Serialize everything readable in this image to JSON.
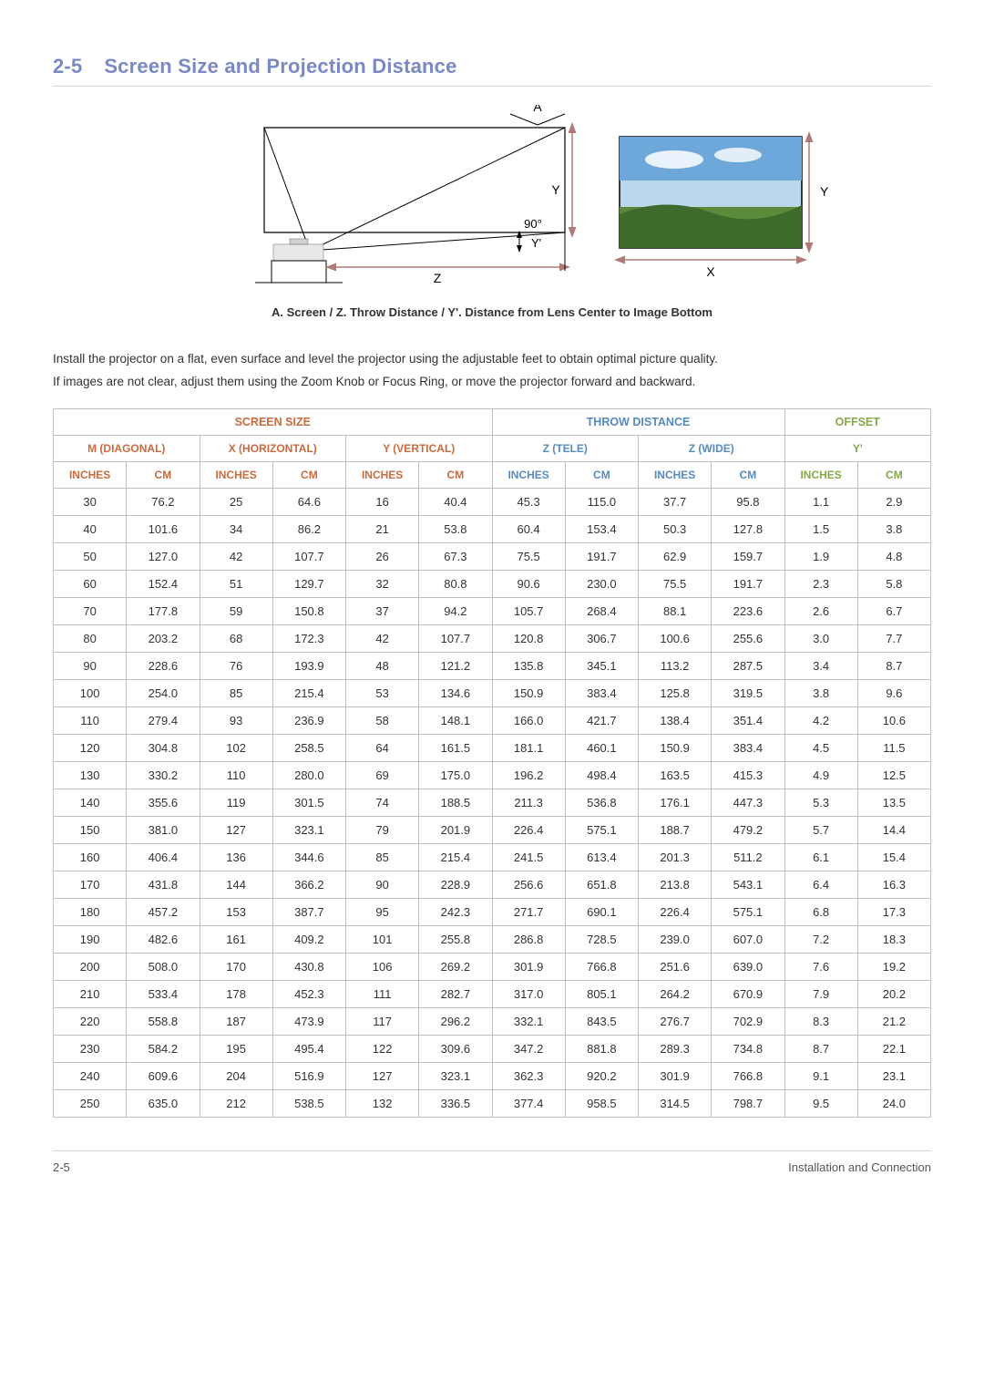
{
  "title": {
    "num": "2-5",
    "text": "Screen Size and Projection Distance"
  },
  "diagram": {
    "caption": "A. Screen / Z. Throw Distance / Y'. Distance from Lens Center to Image Bottom",
    "labels": {
      "A": "A",
      "Y": "Y",
      "Yp": "Y'",
      "Z": "Z",
      "X": "X",
      "angle": "90°"
    },
    "colors": {
      "line": "#000000",
      "guide": "#b07a76",
      "arrow_bar": "#b07a76",
      "projector_body": "#e8e8e8",
      "projector_shadow": "#d0d0d0",
      "sky_top": "#6ea7d9",
      "sky_bottom": "#bad7ec",
      "field": "#5a8a3a",
      "field_dark": "#3e6a2b",
      "image_border": "#000000"
    }
  },
  "paragraphs": [
    "Install the projector on a flat, even surface and level the projector using the adjustable feet to obtain optimal picture quality.",
    "If images are not clear, adjust them using the Zoom Knob or Focus Ring, or move the projector forward and backward."
  ],
  "table": {
    "groups": [
      {
        "label": "SCREEN SIZE",
        "span": 6,
        "class": "grp1"
      },
      {
        "label": "THROW DISTANCE",
        "span": 4,
        "class": "grp2"
      },
      {
        "label": "OFFSET",
        "span": 2,
        "class": "grp3"
      }
    ],
    "subgroups": [
      {
        "label": "M (DIAGONAL)",
        "span": 2,
        "class": "grp1"
      },
      {
        "label": "X (HORIZONTAL)",
        "span": 2,
        "class": "grp1"
      },
      {
        "label": "Y (VERTICAL)",
        "span": 2,
        "class": "grp1"
      },
      {
        "label": "Z (TELE)",
        "span": 2,
        "class": "grp2"
      },
      {
        "label": "Z (WIDE)",
        "span": 2,
        "class": "grp2"
      },
      {
        "label": "Y'",
        "span": 2,
        "class": "grp3"
      }
    ],
    "unit_colors": [
      "grp1",
      "grp1",
      "grp1",
      "grp1",
      "grp1",
      "grp1",
      "grp2",
      "grp2",
      "grp2",
      "grp2",
      "grp3",
      "grp3"
    ],
    "units": [
      "INCHES",
      "CM",
      "INCHES",
      "CM",
      "INCHES",
      "CM",
      "INCHES",
      "CM",
      "INCHES",
      "CM",
      "INCHES",
      "CM"
    ],
    "rows": [
      [
        "30",
        "76.2",
        "25",
        "64.6",
        "16",
        "40.4",
        "45.3",
        "115.0",
        "37.7",
        "95.8",
        "1.1",
        "2.9"
      ],
      [
        "40",
        "101.6",
        "34",
        "86.2",
        "21",
        "53.8",
        "60.4",
        "153.4",
        "50.3",
        "127.8",
        "1.5",
        "3.8"
      ],
      [
        "50",
        "127.0",
        "42",
        "107.7",
        "26",
        "67.3",
        "75.5",
        "191.7",
        "62.9",
        "159.7",
        "1.9",
        "4.8"
      ],
      [
        "60",
        "152.4",
        "51",
        "129.7",
        "32",
        "80.8",
        "90.6",
        "230.0",
        "75.5",
        "191.7",
        "2.3",
        "5.8"
      ],
      [
        "70",
        "177.8",
        "59",
        "150.8",
        "37",
        "94.2",
        "105.7",
        "268.4",
        "88.1",
        "223.6",
        "2.6",
        "6.7"
      ],
      [
        "80",
        "203.2",
        "68",
        "172.3",
        "42",
        "107.7",
        "120.8",
        "306.7",
        "100.6",
        "255.6",
        "3.0",
        "7.7"
      ],
      [
        "90",
        "228.6",
        "76",
        "193.9",
        "48",
        "121.2",
        "135.8",
        "345.1",
        "113.2",
        "287.5",
        "3.4",
        "8.7"
      ],
      [
        "100",
        "254.0",
        "85",
        "215.4",
        "53",
        "134.6",
        "150.9",
        "383.4",
        "125.8",
        "319.5",
        "3.8",
        "9.6"
      ],
      [
        "110",
        "279.4",
        "93",
        "236.9",
        "58",
        "148.1",
        "166.0",
        "421.7",
        "138.4",
        "351.4",
        "4.2",
        "10.6"
      ],
      [
        "120",
        "304.8",
        "102",
        "258.5",
        "64",
        "161.5",
        "181.1",
        "460.1",
        "150.9",
        "383.4",
        "4.5",
        "11.5"
      ],
      [
        "130",
        "330.2",
        "110",
        "280.0",
        "69",
        "175.0",
        "196.2",
        "498.4",
        "163.5",
        "415.3",
        "4.9",
        "12.5"
      ],
      [
        "140",
        "355.6",
        "119",
        "301.5",
        "74",
        "188.5",
        "211.3",
        "536.8",
        "176.1",
        "447.3",
        "5.3",
        "13.5"
      ],
      [
        "150",
        "381.0",
        "127",
        "323.1",
        "79",
        "201.9",
        "226.4",
        "575.1",
        "188.7",
        "479.2",
        "5.7",
        "14.4"
      ],
      [
        "160",
        "406.4",
        "136",
        "344.6",
        "85",
        "215.4",
        "241.5",
        "613.4",
        "201.3",
        "511.2",
        "6.1",
        "15.4"
      ],
      [
        "170",
        "431.8",
        "144",
        "366.2",
        "90",
        "228.9",
        "256.6",
        "651.8",
        "213.8",
        "543.1",
        "6.4",
        "16.3"
      ],
      [
        "180",
        "457.2",
        "153",
        "387.7",
        "95",
        "242.3",
        "271.7",
        "690.1",
        "226.4",
        "575.1",
        "6.8",
        "17.3"
      ],
      [
        "190",
        "482.6",
        "161",
        "409.2",
        "101",
        "255.8",
        "286.8",
        "728.5",
        "239.0",
        "607.0",
        "7.2",
        "18.3"
      ],
      [
        "200",
        "508.0",
        "170",
        "430.8",
        "106",
        "269.2",
        "301.9",
        "766.8",
        "251.6",
        "639.0",
        "7.6",
        "19.2"
      ],
      [
        "210",
        "533.4",
        "178",
        "452.3",
        "111",
        "282.7",
        "317.0",
        "805.1",
        "264.2",
        "670.9",
        "7.9",
        "20.2"
      ],
      [
        "220",
        "558.8",
        "187",
        "473.9",
        "117",
        "296.2",
        "332.1",
        "843.5",
        "276.7",
        "702.9",
        "8.3",
        "21.2"
      ],
      [
        "230",
        "584.2",
        "195",
        "495.4",
        "122",
        "309.6",
        "347.2",
        "881.8",
        "289.3",
        "734.8",
        "8.7",
        "22.1"
      ],
      [
        "240",
        "609.6",
        "204",
        "516.9",
        "127",
        "323.1",
        "362.3",
        "920.2",
        "301.9",
        "766.8",
        "9.1",
        "23.1"
      ],
      [
        "250",
        "635.0",
        "212",
        "538.5",
        "132",
        "336.5",
        "377.4",
        "958.5",
        "314.5",
        "798.7",
        "9.5",
        "24.0"
      ]
    ]
  },
  "footer": {
    "left": "2-5",
    "right": "Installation and Connection"
  }
}
